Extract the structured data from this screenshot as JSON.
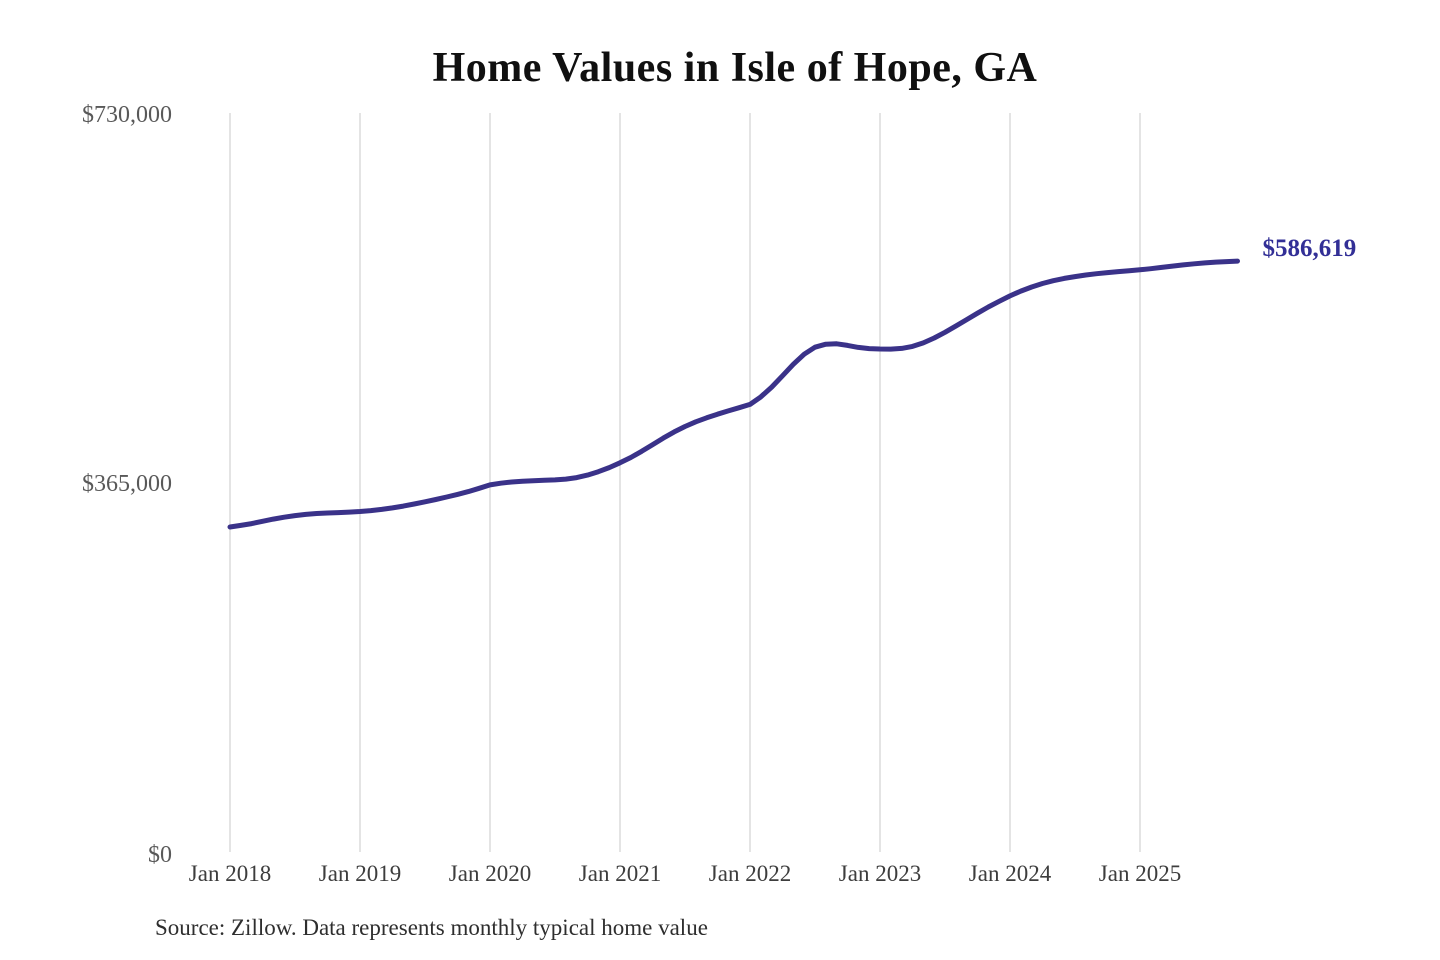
{
  "figure": {
    "title": "Home Values in Isle of Hope, GA",
    "source_note": "Source: Zillow. Data represents monthly typical home value",
    "latest_value_label": "$586,619"
  },
  "y_axis": {
    "ticks": [
      "$730,000",
      "$365,000",
      "$0"
    ],
    "tick_values": [
      730000,
      365000,
      0
    ]
  },
  "x_axis": {
    "ticks": [
      "Jan 2018",
      "Jan 2019",
      "Jan 2020",
      "Jan 2021",
      "Jan 2022",
      "Jan 2023",
      "Jan 2024",
      "Jan 2025"
    ]
  },
  "colors": {
    "line": "#3a3289",
    "latest_label": "#322f96",
    "grid": "#c9c9c9",
    "y_tick_text": "#595959",
    "x_tick_text": "#3d3d3d",
    "title_text": "#101010",
    "source_text": "#2e2e2e",
    "background": "#ffffff"
  },
  "chart_data": {
    "type": "line",
    "title": "Home Values in Isle of Hope, GA",
    "ylim": [
      0,
      730000
    ],
    "y_tick_values": [
      0,
      365000,
      730000
    ],
    "y_tick_labels": [
      "$0",
      "$365,000",
      "$730,000"
    ],
    "x_tick_labels": [
      "Jan 2018",
      "Jan 2019",
      "Jan 2020",
      "Jan 2021",
      "Jan 2022",
      "Jan 2023",
      "Jan 2024",
      "Jan 2025"
    ],
    "x_frequency": "monthly",
    "x_start": "2018-01",
    "x_end": "2025-10",
    "gridlines": "vertical-at-each-january",
    "legend": "none",
    "latest_value": 586619,
    "latest_value_label": "$586,619",
    "source": "Source: Zillow. Data represents monthly typical home value",
    "series": [
      {
        "name": "Typical home value",
        "color": "#3a3289",
        "values": [
          324000,
          325600,
          327400,
          329600,
          331800,
          333700,
          335300,
          336500,
          337300,
          337800,
          338200,
          338700,
          339300,
          340200,
          341400,
          342900,
          344700,
          346700,
          348900,
          351200,
          353600,
          356200,
          359000,
          362200,
          365600,
          367300,
          368500,
          369200,
          369700,
          370100,
          370500,
          371300,
          372800,
          375300,
          378600,
          382700,
          387400,
          392700,
          398800,
          405300,
          411800,
          417900,
          423300,
          427900,
          431900,
          435400,
          438700,
          441900,
          445100,
          452500,
          462200,
          473400,
          484700,
          494700,
          501600,
          504600,
          505000,
          503400,
          501400,
          500200,
          499800,
          499700,
          500400,
          502400,
          505900,
          510700,
          516300,
          522500,
          528900,
          535200,
          541300,
          547000,
          552300,
          557000,
          561100,
          564500,
          567300,
          569600,
          571400,
          572900,
          574200,
          575300,
          576300,
          577200,
          578100,
          579200,
          580400,
          581700,
          582900,
          584000,
          584900,
          585700,
          586200,
          586619
        ]
      }
    ]
  }
}
